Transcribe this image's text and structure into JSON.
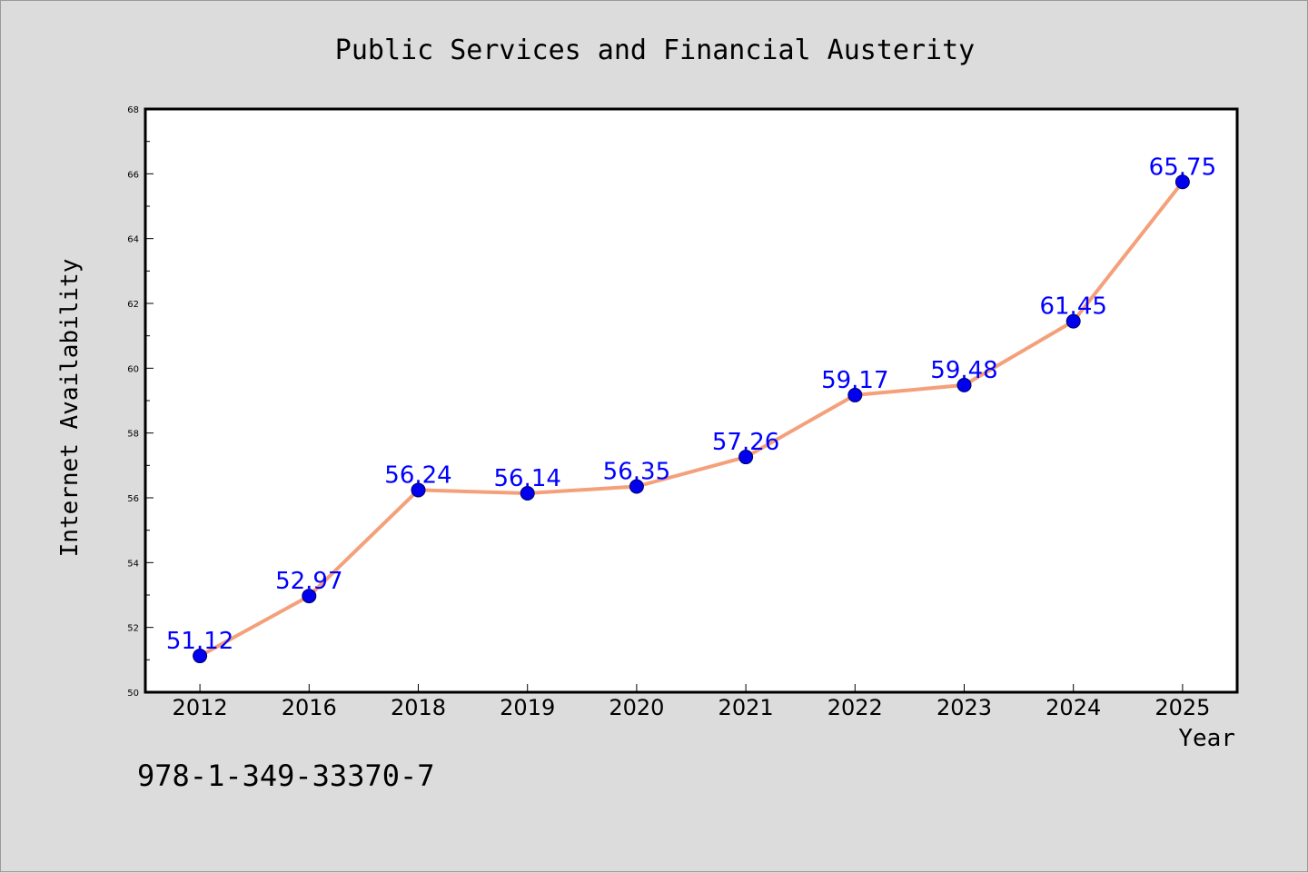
{
  "chart_data": {
    "type": "line",
    "title": "Public Services and Financial Austerity",
    "xlabel": "Year",
    "ylabel": "Internet Availability",
    "categories": [
      "2012",
      "2016",
      "2018",
      "2019",
      "2020",
      "2021",
      "2022",
      "2023",
      "2024",
      "2025"
    ],
    "values": [
      51.12,
      52.97,
      56.24,
      56.14,
      56.35,
      57.26,
      59.17,
      59.48,
      61.45,
      65.75
    ],
    "ylim": [
      50,
      68
    ],
    "yticks": [
      50,
      52,
      54,
      56,
      58,
      60,
      62,
      64,
      66,
      68
    ],
    "grid": false,
    "legend": "none",
    "colors": {
      "line": "#f4a07a",
      "marker": "#0000ee",
      "marker_edge": "#000066",
      "data_label": "#0000ff",
      "plot_background": "#ffffff",
      "figure_background": "#dcdcdc"
    }
  },
  "footer": {
    "isbn": "978-1-349-33370-7"
  }
}
